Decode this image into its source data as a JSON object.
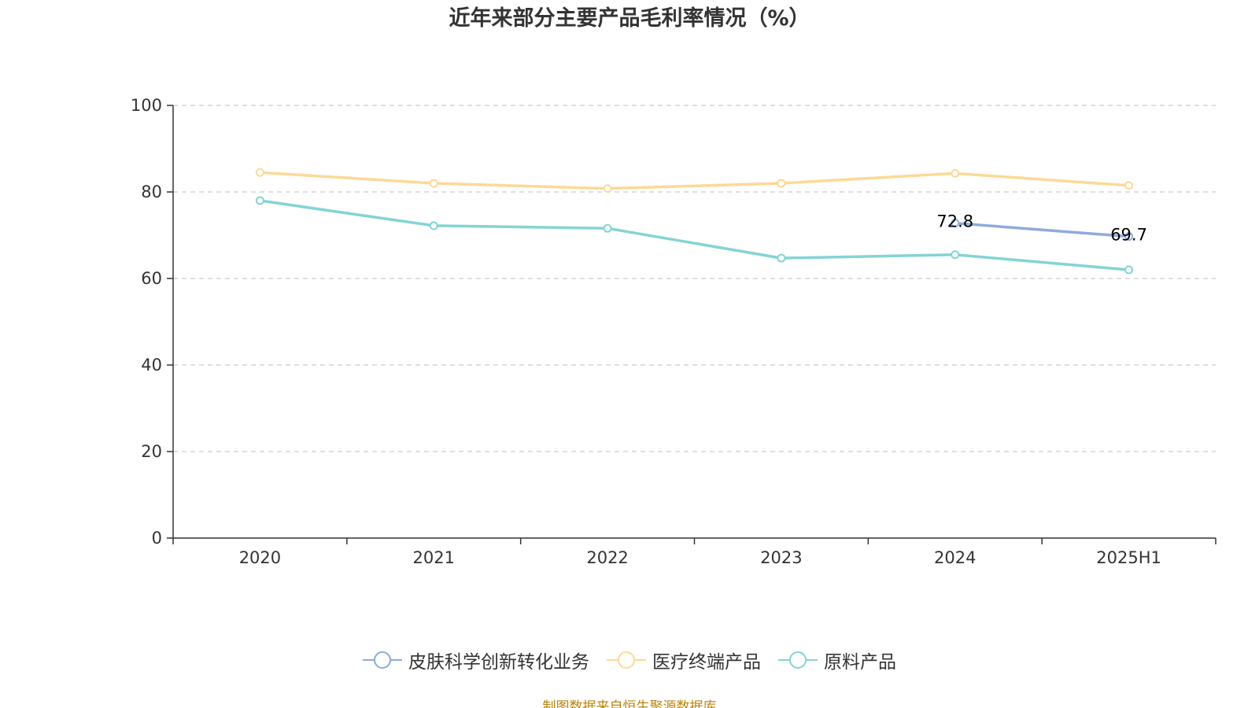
{
  "title": "近年来部分主要产品毛利率情况（%）",
  "source": "制图数据来自恒生聚源数据库",
  "chart_data": {
    "type": "line",
    "title": "近年来部分主要产品毛利率情况（%）",
    "xlabel": "",
    "ylabel": "",
    "categories": [
      "2020",
      "2021",
      "2022",
      "2023",
      "2024",
      "2025H1"
    ],
    "ylim": [
      0,
      100
    ],
    "yticks": [
      "0",
      "20",
      "40",
      "60",
      "80",
      "100"
    ],
    "grid": true,
    "legend_position": "bottom-center",
    "series": [
      {
        "name": "皮肤科学创新转化业务",
        "color": "#8faadc",
        "values": [
          null,
          null,
          null,
          null,
          72.8,
          69.7
        ],
        "labels": [
          "",
          "",
          "",
          "",
          "72.8",
          "69.7"
        ]
      },
      {
        "name": "医疗终端产品",
        "color": "#fdd996",
        "values": [
          84.5,
          82.0,
          80.8,
          82.0,
          84.3,
          81.5
        ],
        "labels": [
          "",
          "",
          "",
          "",
          "",
          ""
        ]
      },
      {
        "name": "原料产品",
        "color": "#84d4d4",
        "values": [
          78.0,
          72.2,
          71.6,
          64.7,
          65.5,
          62.0
        ],
        "labels": [
          "",
          "",
          "",
          "",
          "",
          ""
        ]
      }
    ]
  }
}
